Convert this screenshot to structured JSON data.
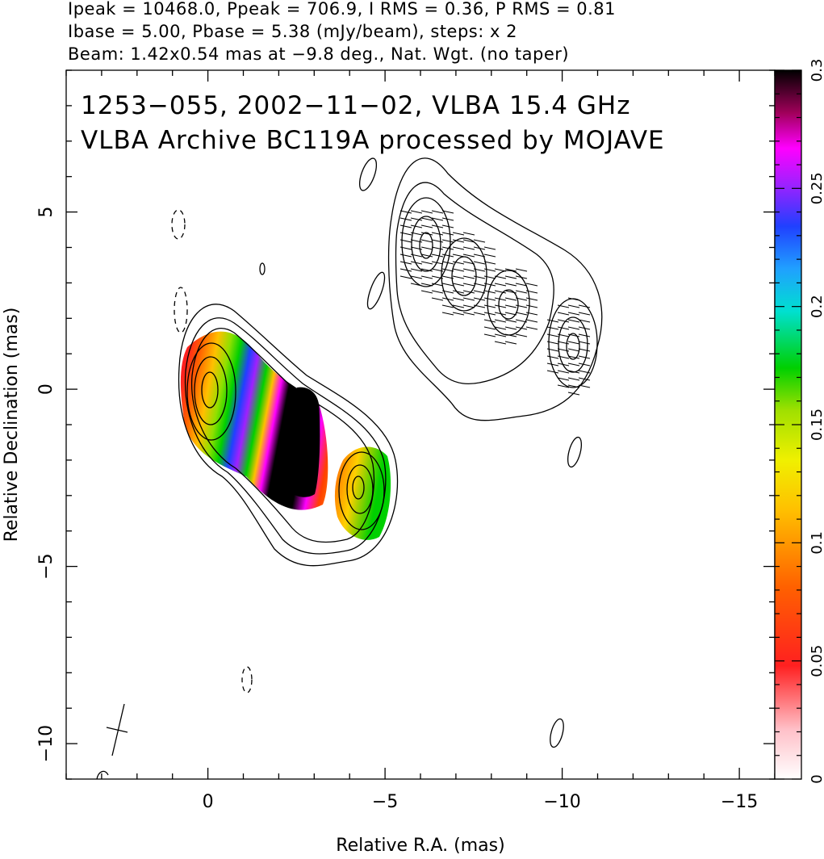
{
  "header": {
    "line1": "Ipeak = 10468.0, Ppeak = 706.9, I RMS = 0.36, P RMS = 0.81",
    "line2": "Ibase = 5.00, Pbase = 5.38 (mJy/beam), steps: x 2",
    "line3": "Beam: 1.42x0.54 mas at −9.8 deg., Nat. Wgt. (no taper)"
  },
  "overlay": {
    "line1": "1253−055, 2002−11−02, VLBA 15.4 GHz",
    "line2": "VLBA Archive BC119A processed by MOJAVE"
  },
  "chart_data": {
    "type": "heatmap",
    "description_free": true,
    "xlabel": "Relative R.A. (mas)",
    "ylabel": "Relative Declination (mas)",
    "xlim": [
      4,
      -16
    ],
    "ylim": [
      -11,
      9
    ],
    "x_ticks": [
      0,
      -5,
      -10,
      -15
    ],
    "x_tick_labels": [
      "0",
      "−5",
      "−10",
      "−15"
    ],
    "y_ticks": [
      5,
      0,
      -5,
      -10
    ],
    "y_tick_labels": [
      "5",
      "0",
      "−5",
      "−10"
    ],
    "colorbar": {
      "range": [
        0,
        0.3
      ],
      "ticks": [
        0,
        0.05,
        0.1,
        0.15,
        0.2,
        0.25,
        0.3
      ],
      "tick_labels": [
        "0",
        "0.05",
        "0.1",
        "0.15",
        "0.2",
        "0.25",
        "0.3"
      ]
    },
    "colors": {
      "frame": "#000000",
      "contour": "#000000"
    }
  }
}
